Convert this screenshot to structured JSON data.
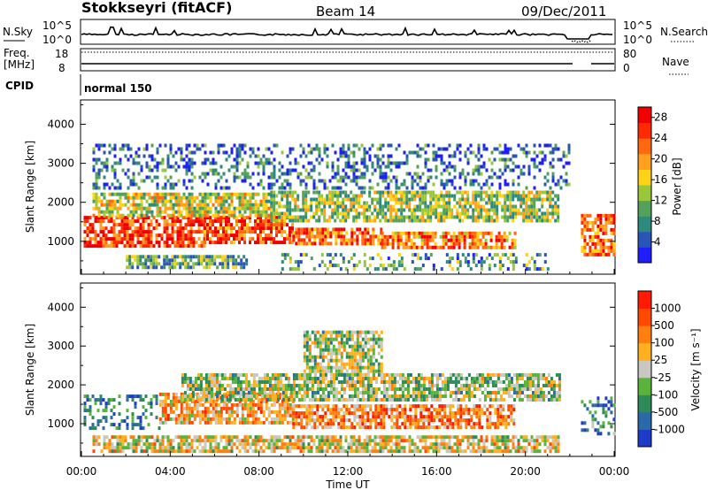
{
  "header": {
    "station": "Stokkseyri (fitACF)",
    "beam": "Beam 14",
    "date": "09/Dec/2011"
  },
  "top_panels": {
    "nsky": {
      "label": "N.Sky",
      "ticks_left": [
        "10^5",
        "10^0"
      ],
      "ticks_right": [
        "10^5",
        "10^0"
      ],
      "right_label": "N.Search"
    },
    "freq": {
      "label_line1": "Freq.",
      "label_line2": "[MHz]",
      "ticks_left": [
        "18",
        "8"
      ],
      "ticks_right": [
        "80",
        "0"
      ],
      "right_label": "Nave"
    },
    "cpid": {
      "label": "CPID",
      "mode": "normal 150"
    }
  },
  "chart_data": [
    {
      "type": "heatmap",
      "ylabel": "Slant Range [km]",
      "xlabel": "Time UT",
      "x_ticks": [
        "00:00",
        "04:00",
        "08:00",
        "12:00",
        "16:00",
        "20:00",
        "00:00"
      ],
      "xlim_hours": [
        0,
        24
      ],
      "y_ticks": [
        1000,
        2000,
        3000,
        4000
      ],
      "ylim": [
        180,
        4600
      ],
      "colorbar": {
        "label": "Power [dB]",
        "ticks": [
          4,
          8,
          12,
          16,
          20,
          24,
          28
        ],
        "range": [
          0,
          30
        ],
        "colors": [
          "#1e1eff",
          "#2a55b8",
          "#2f8a7e",
          "#55a05a",
          "#98c73a",
          "#ffd21a",
          "#ffa020",
          "#ff6a10",
          "#ff2a00",
          "#f00000"
        ]
      },
      "regions": [
        {
          "t0": 0.1,
          "t1": 5.5,
          "r0": 850,
          "r1": 1650,
          "level": 0.85
        },
        {
          "t0": 5.5,
          "t1": 9.5,
          "r0": 1000,
          "r1": 1650,
          "level": 0.82
        },
        {
          "t0": 9.5,
          "t1": 13.5,
          "r0": 900,
          "r1": 1350,
          "level": 0.78
        },
        {
          "t0": 13.5,
          "t1": 19.5,
          "r0": 850,
          "r1": 1250,
          "level": 0.72
        },
        {
          "t0": 0.5,
          "t1": 8.5,
          "r0": 1700,
          "r1": 2250,
          "level": 0.5
        },
        {
          "t0": 8.5,
          "t1": 21.5,
          "r0": 1500,
          "r1": 2300,
          "level": 0.45
        },
        {
          "t0": 2.0,
          "t1": 7.5,
          "r0": 300,
          "r1": 650,
          "level": 0.35
        },
        {
          "t0": 9.0,
          "t1": 21.0,
          "r0": 300,
          "r1": 700,
          "level": 0.3
        },
        {
          "t0": 0.5,
          "t1": 22.0,
          "r0": 2400,
          "r1": 3500,
          "level": 0.2
        },
        {
          "t0": 22.5,
          "t1": 24.0,
          "r0": 700,
          "r1": 1700,
          "level": 0.75
        }
      ]
    },
    {
      "type": "heatmap",
      "ylabel": "Slant Range [km]",
      "xlabel": "Time UT",
      "x_ticks": [
        "00:00",
        "04:00",
        "08:00",
        "12:00",
        "16:00",
        "20:00",
        "00:00"
      ],
      "xlim_hours": [
        0,
        24
      ],
      "y_ticks": [
        1000,
        2000,
        3000,
        4000
      ],
      "ylim": [
        180,
        4600
      ],
      "colorbar": {
        "label": "Velocity [m s⁻¹]",
        "ticks": [
          "1000",
          "500",
          "100",
          "25",
          "-25",
          "-100",
          "-500",
          "-1000"
        ],
        "colors": [
          "#1e3cc8",
          "#2a6aa8",
          "#2f8a5a",
          "#5ab43c",
          "#c8c8c0",
          "#ffb020",
          "#ff8010",
          "#ff4a00",
          "#ff1a00"
        ]
      },
      "regions": [
        {
          "t0": 0.1,
          "t1": 3.5,
          "r0": 900,
          "r1": 1750,
          "level": 0.2
        },
        {
          "t0": 3.5,
          "t1": 9.5,
          "r0": 1000,
          "r1": 1800,
          "level": 0.65
        },
        {
          "t0": 4.5,
          "t1": 21.5,
          "r0": 1600,
          "r1": 2300,
          "level": 0.45
        },
        {
          "t0": 9.5,
          "t1": 19.5,
          "r0": 900,
          "r1": 1500,
          "level": 0.72
        },
        {
          "t0": 0.5,
          "t1": 21.5,
          "r0": 300,
          "r1": 700,
          "level": 0.55
        },
        {
          "t0": 10.0,
          "t1": 13.5,
          "r0": 2300,
          "r1": 3400,
          "level": 0.45
        },
        {
          "t0": 22.5,
          "t1": 24.0,
          "r0": 700,
          "r1": 1700,
          "level": 0.25
        }
      ]
    }
  ]
}
